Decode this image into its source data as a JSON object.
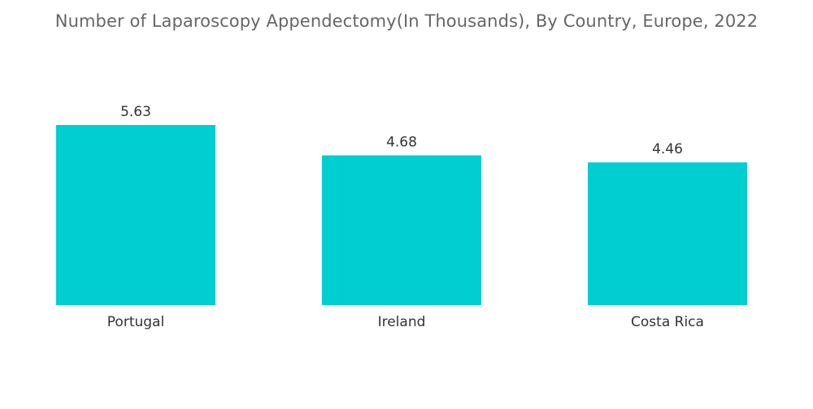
{
  "chart_data": {
    "type": "bar",
    "title": "Number of Laparoscopy Appendectomy(In Thousands), By Country, Europe, 2022",
    "xlabel": "",
    "ylabel": "",
    "categories": [
      "Portugal",
      "Ireland",
      "Costa Rica"
    ],
    "values": [
      5.63,
      4.68,
      4.46
    ],
    "value_labels": [
      "5.63",
      "4.68",
      "4.46"
    ],
    "ylim": [
      0,
      5.63
    ],
    "grid": false,
    "legend": "none",
    "bar_color": "#00CED1"
  }
}
